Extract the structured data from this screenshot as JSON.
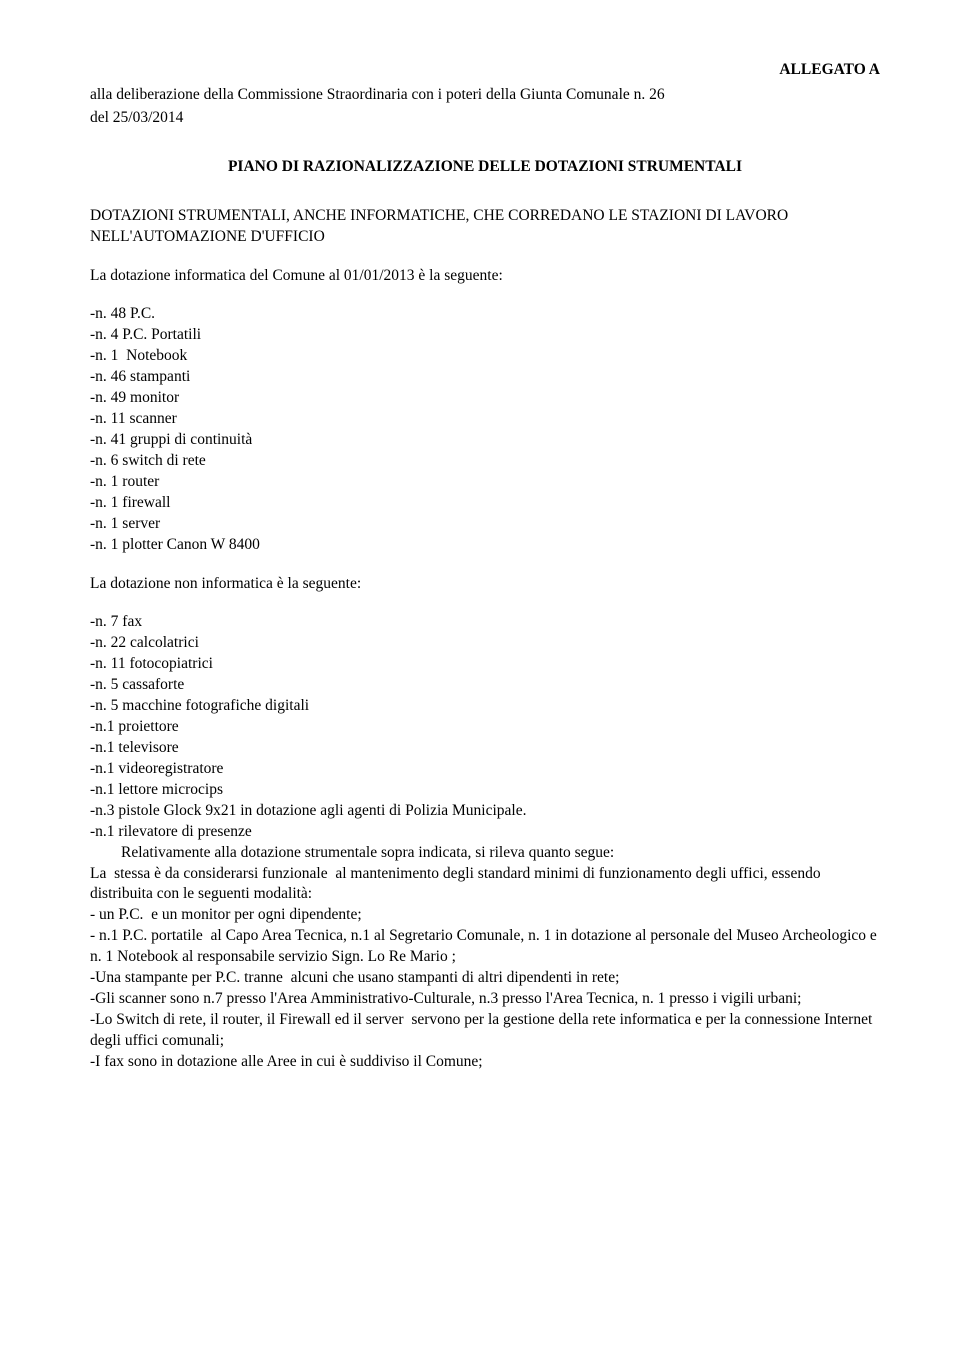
{
  "allegato": "ALLEGATO A",
  "preamble": {
    "line1": "alla deliberazione della Commissione Straordinaria con i poteri della Giunta Comunale n.  26",
    "line2": "del 25/03/2014"
  },
  "title": "PIANO DI RAZIONALIZZAZIONE DELLE DOTAZIONI STRUMENTALI",
  "subtitle": "DOTAZIONI STRUMENTALI, ANCHE INFORMATICHE, CHE CORREDANO LE STAZIONI DI LAVORO NELL'AUTOMAZIONE D'UFFICIO",
  "intro1": "La dotazione informatica del Comune al 01/01/2013 è la seguente:",
  "list1": [
    "-n. 48 P.C.",
    "-n. 4 P.C. Portatili",
    "-n. 1  Notebook",
    "-n. 46 stampanti",
    "-n. 49 monitor",
    "-n. 11 scanner",
    "-n. 41 gruppi di continuità",
    "-n. 6 switch di rete",
    "-n. 1 router",
    "-n. 1 firewall",
    "-n. 1 server",
    "-n. 1 plotter Canon W 8400"
  ],
  "intro2": "La dotazione non informatica è la seguente:",
  "list2": [
    "-n. 7 fax",
    "-n. 22 calcolatrici",
    "-n. 11 fotocopiatrici",
    "-n. 5 cassaforte",
    "-n. 5 macchine fotografiche digitali",
    "-n.1 proiettore",
    "-n.1 televisore",
    "-n.1 videoregistratore",
    "-n.1 lettore microcips",
    "-n.3 pistole Glock 9x21 in dotazione agli agenti di Polizia Municipale.",
    "-n.1 rilevatore di presenze"
  ],
  "trail": [
    "        Relativamente alla dotazione strumentale sopra indicata, si rileva quanto segue:",
    "La  stessa è da considerarsi funzionale  al mantenimento degli standard minimi di funzionamento degli uffici, essendo distribuita con le seguenti modalità:",
    "- un P.C.  e un monitor per ogni dipendente;",
    "- n.1 P.C. portatile  al Capo Area Tecnica, n.1 al Segretario Comunale, n. 1 in dotazione al personale del Museo Archeologico e n. 1 Notebook al responsabile servizio Sign. Lo Re Mario ;",
    "-Una stampante per P.C. tranne  alcuni che usano stampanti di altri dipendenti in rete;",
    "-Gli scanner sono n.7 presso l'Area Amministrativo-Culturale, n.3 presso l'Area Tecnica, n. 1 presso i vigili urbani;",
    "-Lo Switch di rete, il router, il Firewall ed il server  servono per la gestione della rete informatica e per la connessione Internet degli uffici comunali;",
    "-I fax sono in dotazione alle Aree in cui è suddiviso il Comune;"
  ]
}
